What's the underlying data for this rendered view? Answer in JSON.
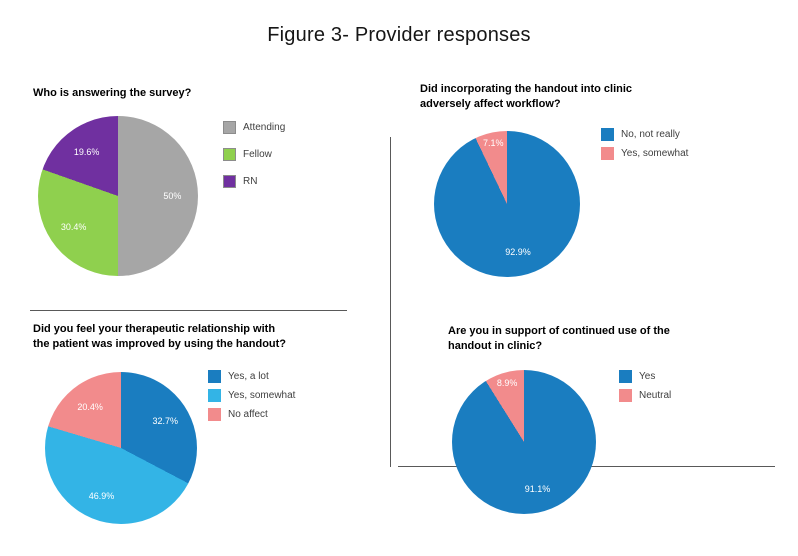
{
  "figure_title": "Figure 3- Provider responses",
  "chart_data": [
    {
      "type": "pie",
      "title": "Who is answering the survey?",
      "start_angle": "12-oclock",
      "direction": "clockwise",
      "legend_position": "right",
      "slices": [
        {
          "label": "Attending",
          "value": 50,
          "display": "50%",
          "color": "#a6a6a6"
        },
        {
          "label": "Fellow",
          "value": 30.4,
          "display": "30.4%",
          "color": "#8fd04e"
        },
        {
          "label": "RN",
          "value": 19.6,
          "display": "19.6%",
          "color": "#7030a0"
        }
      ]
    },
    {
      "type": "pie",
      "title": "Did incorporating the handout into clinic\nadversely affect workflow?",
      "start_angle": "12-oclock",
      "direction": "clockwise",
      "legend_position": "right",
      "slices": [
        {
          "label": "No, not really",
          "value": 92.9,
          "display": "92.9%",
          "color": "#1a7dc0"
        },
        {
          "label": "Yes, somewhat",
          "value": 7.1,
          "display": "7.1%",
          "color": "#f28b8c"
        }
      ]
    },
    {
      "type": "pie",
      "title": "Did you feel your therapeutic relationship with\nthe patient was improved by using the handout?",
      "start_angle": "12-oclock",
      "direction": "clockwise",
      "legend_position": "right",
      "slices": [
        {
          "label": "Yes, a lot",
          "value": 32.7,
          "display": "32.7%",
          "color": "#1a7dc0"
        },
        {
          "label": "Yes, somewhat",
          "value": 46.9,
          "display": "46.9%",
          "color": "#33b4e6"
        },
        {
          "label": "No affect",
          "value": 20.4,
          "display": "20.4%",
          "color": "#f28b8c"
        }
      ]
    },
    {
      "type": "pie",
      "title": "Are you in support of continued use of the\nhandout in clinic?",
      "start_angle": "12-oclock",
      "direction": "clockwise",
      "legend_position": "right",
      "slices": [
        {
          "label": "Yes",
          "value": 91.1,
          "display": "91.1%",
          "color": "#1a7dc0"
        },
        {
          "label": "Neutral",
          "value": 8.9,
          "display": "8.9%",
          "color": "#f28b8c"
        }
      ]
    }
  ]
}
